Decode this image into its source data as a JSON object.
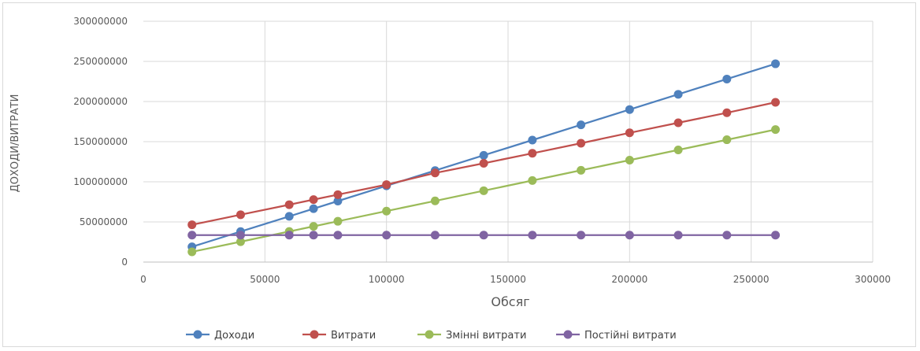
{
  "chart_data": {
    "type": "line",
    "xlabel": "Обсяг",
    "ylabel": "ДОХОДИ/ВИТРАТИ",
    "xlim": [
      0,
      300000
    ],
    "ylim": [
      0,
      300000000
    ],
    "x_ticks": [
      "0",
      "50000",
      "100000",
      "150000",
      "200000",
      "250000",
      "300000"
    ],
    "y_ticks": [
      "0",
      "50000000",
      "100000000",
      "150000000",
      "200000000",
      "250000000",
      "300000000"
    ],
    "grid": true,
    "legend_position": "bottom",
    "x": [
      20000,
      40000,
      60000,
      70000,
      80000,
      100000,
      120000,
      140000,
      160000,
      180000,
      200000,
      220000,
      240000,
      260000
    ],
    "series": [
      {
        "name": "Доходи",
        "color": "#4f81bd",
        "values": [
          19000000,
          38000000,
          57000000,
          66500000,
          76000000,
          95000000,
          114000000,
          133000000,
          152000000,
          171000000,
          190000000,
          209000000,
          228000000,
          247000000
        ]
      },
      {
        "name": "Витрати",
        "color": "#c0504d",
        "values": [
          46500000,
          59000000,
          71500000,
          77800000,
          84000000,
          96500000,
          111000000,
          123000000,
          135500000,
          148000000,
          161000000,
          173500000,
          186000000,
          199000000
        ]
      },
      {
        "name": "Змінні витрати",
        "color": "#9bbb59",
        "values": [
          12700000,
          25400000,
          38100000,
          44500000,
          50800000,
          63500000,
          76200000,
          88900000,
          101600000,
          114300000,
          127000000,
          139700000,
          152400000,
          165100000
        ]
      },
      {
        "name": "Постійні витрати",
        "color": "#8064a2",
        "values": [
          33600000,
          33600000,
          33600000,
          33600000,
          33600000,
          33600000,
          33600000,
          33600000,
          33600000,
          33600000,
          33600000,
          33600000,
          33600000,
          33600000
        ]
      }
    ]
  }
}
